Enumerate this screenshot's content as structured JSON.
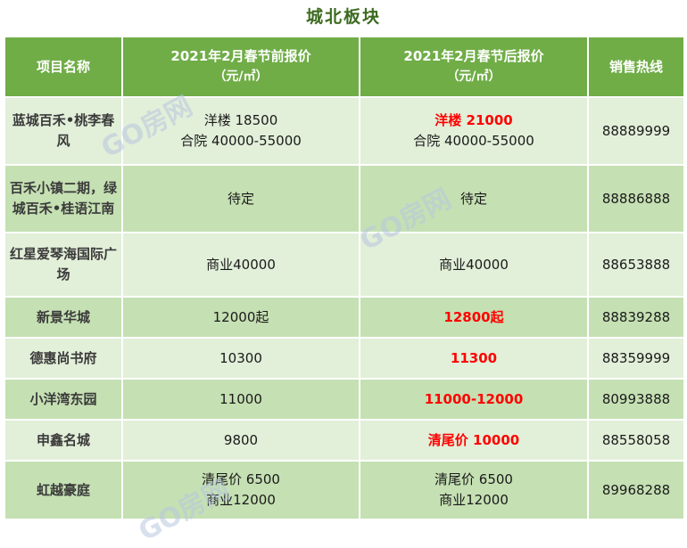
{
  "title": "城北板块",
  "headers": {
    "project": "项目名称",
    "before": "2021年2月春节前报价",
    "before_unit": "（元/㎡）",
    "after": "2021年2月春节后报价",
    "after_unit": "（元/㎡）",
    "hotline": "销售热线"
  },
  "rows": [
    {
      "project": "蓝城百禾•桃李春风",
      "before": [
        "洋楼 18500",
        "合院 40000-55000"
      ],
      "after": [
        "洋楼 21000",
        "合院 40000-55000"
      ],
      "after_red": [
        true,
        false
      ],
      "hotline": "88889999"
    },
    {
      "project": "百禾小镇二期，绿城百禾•桂语江南",
      "before": [
        "待定"
      ],
      "after": [
        "待定"
      ],
      "after_red": [
        false
      ],
      "hotline": "88886888"
    },
    {
      "project": "红星爱琴海国际广场",
      "before": [
        "商业40000"
      ],
      "after": [
        "商业40000"
      ],
      "after_red": [
        false
      ],
      "hotline": "88653888"
    },
    {
      "project": "新景华城",
      "before": [
        "12000起"
      ],
      "after": [
        "12800起"
      ],
      "after_red": [
        true
      ],
      "hotline": "88839288"
    },
    {
      "project": "德惠尚书府",
      "before": [
        "10300"
      ],
      "after": [
        "11300"
      ],
      "after_red": [
        true
      ],
      "hotline": "88359999"
    },
    {
      "project": "小洋湾东园",
      "before": [
        "11000"
      ],
      "after": [
        "11000-12000"
      ],
      "after_red": [
        true
      ],
      "hotline": "80993888"
    },
    {
      "project": "申鑫名城",
      "before": [
        "9800"
      ],
      "after": [
        "清尾价 10000"
      ],
      "after_red": [
        true
      ],
      "hotline": "88558058"
    },
    {
      "project": "虹越豪庭",
      "before": [
        "清尾价 6500",
        "商业12000"
      ],
      "after": [
        "清尾价 6500",
        "商业12000"
      ],
      "after_red": [
        false,
        false
      ],
      "hotline": "89968288"
    }
  ],
  "watermark": "GO房网",
  "colors": {
    "header_bg": "#70ad47",
    "row_light": "#e2efd9",
    "row_dark": "#c5e0b3",
    "title": "#3b6b1f",
    "highlight": "#ff0000"
  }
}
